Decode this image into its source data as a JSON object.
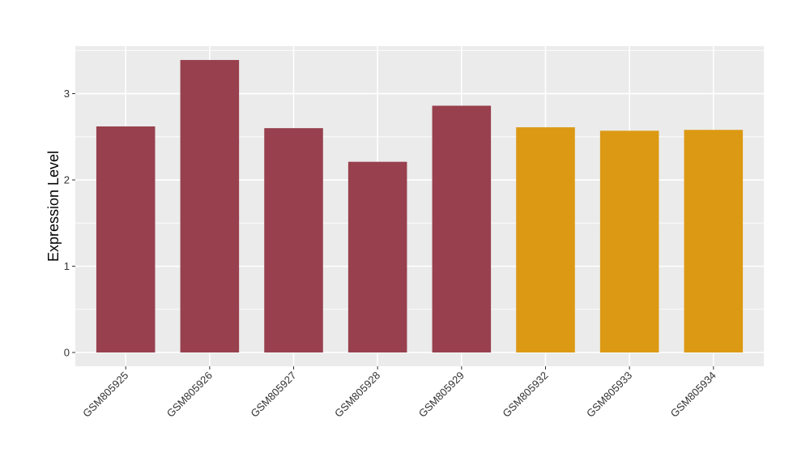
{
  "chart_data": {
    "type": "bar",
    "categories": [
      "GSM805925",
      "GSM805926",
      "GSM805927",
      "GSM805928",
      "GSM805929",
      "GSM805932",
      "GSM805933",
      "GSM805934"
    ],
    "values": [
      2.62,
      3.39,
      2.6,
      2.21,
      2.86,
      2.61,
      2.57,
      2.58
    ],
    "bar_colors": [
      "#98404e",
      "#98404e",
      "#98404e",
      "#98404e",
      "#98404e",
      "#dc9913",
      "#dc9913",
      "#dc9913"
    ],
    "title": "",
    "xlabel": "",
    "ylabel": "Expression Level",
    "ylim": [
      -0.16,
      3.55
    ],
    "yticks": [
      0,
      1,
      2,
      3
    ],
    "ytick_labels": [
      "0",
      "1",
      "2",
      "3"
    ],
    "grid": true,
    "legend": "none",
    "panel_background": "#ebebeb",
    "grid_color": "#ffffff"
  }
}
